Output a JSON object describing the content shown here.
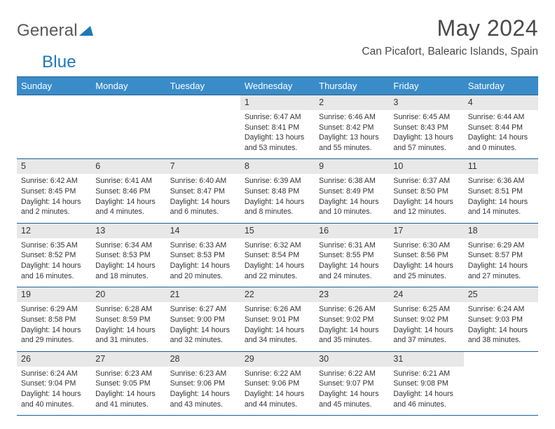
{
  "logo": {
    "general": "General",
    "blue": "Blue"
  },
  "title": "May 2024",
  "location": "Can Picafort, Balearic Islands, Spain",
  "colors": {
    "header_bg": "#3a8cc9",
    "header_rule": "#1f5f90",
    "daynum_bg": "#e8e8e8",
    "text": "#333333"
  },
  "fonts": {
    "title_size": 32,
    "location_size": 15.5,
    "th_size": 13,
    "cell_size": 10.6
  },
  "day_headers": [
    "Sunday",
    "Monday",
    "Tuesday",
    "Wednesday",
    "Thursday",
    "Friday",
    "Saturday"
  ],
  "weeks": [
    [
      null,
      null,
      null,
      {
        "d": "1",
        "sr": "6:47 AM",
        "ss": "8:41 PM",
        "dl": "13 hours and 53 minutes."
      },
      {
        "d": "2",
        "sr": "6:46 AM",
        "ss": "8:42 PM",
        "dl": "13 hours and 55 minutes."
      },
      {
        "d": "3",
        "sr": "6:45 AM",
        "ss": "8:43 PM",
        "dl": "13 hours and 57 minutes."
      },
      {
        "d": "4",
        "sr": "6:44 AM",
        "ss": "8:44 PM",
        "dl": "14 hours and 0 minutes."
      }
    ],
    [
      {
        "d": "5",
        "sr": "6:42 AM",
        "ss": "8:45 PM",
        "dl": "14 hours and 2 minutes."
      },
      {
        "d": "6",
        "sr": "6:41 AM",
        "ss": "8:46 PM",
        "dl": "14 hours and 4 minutes."
      },
      {
        "d": "7",
        "sr": "6:40 AM",
        "ss": "8:47 PM",
        "dl": "14 hours and 6 minutes."
      },
      {
        "d": "8",
        "sr": "6:39 AM",
        "ss": "8:48 PM",
        "dl": "14 hours and 8 minutes."
      },
      {
        "d": "9",
        "sr": "6:38 AM",
        "ss": "8:49 PM",
        "dl": "14 hours and 10 minutes."
      },
      {
        "d": "10",
        "sr": "6:37 AM",
        "ss": "8:50 PM",
        "dl": "14 hours and 12 minutes."
      },
      {
        "d": "11",
        "sr": "6:36 AM",
        "ss": "8:51 PM",
        "dl": "14 hours and 14 minutes."
      }
    ],
    [
      {
        "d": "12",
        "sr": "6:35 AM",
        "ss": "8:52 PM",
        "dl": "14 hours and 16 minutes."
      },
      {
        "d": "13",
        "sr": "6:34 AM",
        "ss": "8:53 PM",
        "dl": "14 hours and 18 minutes."
      },
      {
        "d": "14",
        "sr": "6:33 AM",
        "ss": "8:53 PM",
        "dl": "14 hours and 20 minutes."
      },
      {
        "d": "15",
        "sr": "6:32 AM",
        "ss": "8:54 PM",
        "dl": "14 hours and 22 minutes."
      },
      {
        "d": "16",
        "sr": "6:31 AM",
        "ss": "8:55 PM",
        "dl": "14 hours and 24 minutes."
      },
      {
        "d": "17",
        "sr": "6:30 AM",
        "ss": "8:56 PM",
        "dl": "14 hours and 25 minutes."
      },
      {
        "d": "18",
        "sr": "6:29 AM",
        "ss": "8:57 PM",
        "dl": "14 hours and 27 minutes."
      }
    ],
    [
      {
        "d": "19",
        "sr": "6:29 AM",
        "ss": "8:58 PM",
        "dl": "14 hours and 29 minutes."
      },
      {
        "d": "20",
        "sr": "6:28 AM",
        "ss": "8:59 PM",
        "dl": "14 hours and 31 minutes."
      },
      {
        "d": "21",
        "sr": "6:27 AM",
        "ss": "9:00 PM",
        "dl": "14 hours and 32 minutes."
      },
      {
        "d": "22",
        "sr": "6:26 AM",
        "ss": "9:01 PM",
        "dl": "14 hours and 34 minutes."
      },
      {
        "d": "23",
        "sr": "6:26 AM",
        "ss": "9:02 PM",
        "dl": "14 hours and 35 minutes."
      },
      {
        "d": "24",
        "sr": "6:25 AM",
        "ss": "9:02 PM",
        "dl": "14 hours and 37 minutes."
      },
      {
        "d": "25",
        "sr": "6:24 AM",
        "ss": "9:03 PM",
        "dl": "14 hours and 38 minutes."
      }
    ],
    [
      {
        "d": "26",
        "sr": "6:24 AM",
        "ss": "9:04 PM",
        "dl": "14 hours and 40 minutes."
      },
      {
        "d": "27",
        "sr": "6:23 AM",
        "ss": "9:05 PM",
        "dl": "14 hours and 41 minutes."
      },
      {
        "d": "28",
        "sr": "6:23 AM",
        "ss": "9:06 PM",
        "dl": "14 hours and 43 minutes."
      },
      {
        "d": "29",
        "sr": "6:22 AM",
        "ss": "9:06 PM",
        "dl": "14 hours and 44 minutes."
      },
      {
        "d": "30",
        "sr": "6:22 AM",
        "ss": "9:07 PM",
        "dl": "14 hours and 45 minutes."
      },
      {
        "d": "31",
        "sr": "6:21 AM",
        "ss": "9:08 PM",
        "dl": "14 hours and 46 minutes."
      },
      null
    ]
  ],
  "labels": {
    "sunrise": "Sunrise:",
    "sunset": "Sunset:",
    "daylight": "Daylight:"
  }
}
